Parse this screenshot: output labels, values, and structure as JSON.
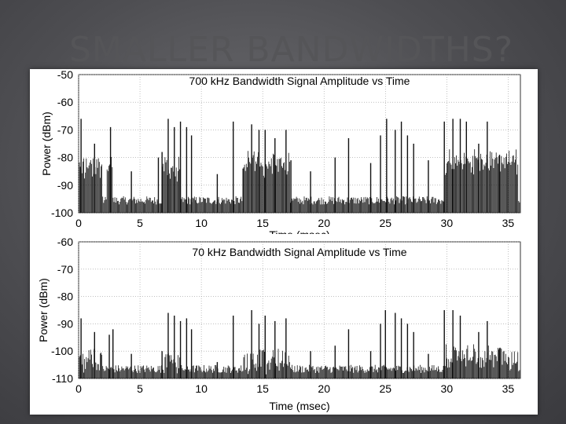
{
  "slide": {
    "title": "SMALLER BANDWIDTHS?",
    "background_color": "#55555a",
    "title_color": "#555558"
  },
  "chart_data": [
    {
      "type": "line",
      "title": "700 kHz Bandwidth Signal Amplitude vs Time",
      "xlabel": "Time (msec)",
      "ylabel": "Power (dBm)",
      "xlim": [
        0,
        36
      ],
      "ylim": [
        -100,
        -50
      ],
      "x_ticks": [
        "0",
        "5",
        "10",
        "15",
        "20",
        "25",
        "30",
        "35"
      ],
      "y_ticks": [
        "-50",
        "-60",
        "-70",
        "-80",
        "-90",
        "-100"
      ],
      "grid": true,
      "noise_floor": -97,
      "bursts": [
        {
          "x": [
            0.0,
            1.9
          ],
          "level": -84
        },
        {
          "x": [
            2.3,
            2.8
          ],
          "level": -85
        },
        {
          "x": [
            6.8,
            8.3
          ],
          "level": -84
        },
        {
          "x": [
            13.4,
            17.2
          ],
          "level": -83
        },
        {
          "x": [
            29.8,
            35.8
          ],
          "level": -82
        }
      ],
      "spikes": [
        {
          "x": 0.2,
          "y": -66
        },
        {
          "x": 1.3,
          "y": -75
        },
        {
          "x": 2.6,
          "y": -69
        },
        {
          "x": 4.3,
          "y": -85
        },
        {
          "x": 6.5,
          "y": -80
        },
        {
          "x": 6.8,
          "y": -78
        },
        {
          "x": 7.3,
          "y": -66
        },
        {
          "x": 7.8,
          "y": -69
        },
        {
          "x": 8.3,
          "y": -67
        },
        {
          "x": 8.8,
          "y": -69
        },
        {
          "x": 9.2,
          "y": -72
        },
        {
          "x": 11.3,
          "y": -86
        },
        {
          "x": 12.6,
          "y": -67
        },
        {
          "x": 13.4,
          "y": -84
        },
        {
          "x": 14.1,
          "y": -68
        },
        {
          "x": 14.7,
          "y": -70
        },
        {
          "x": 15.2,
          "y": -70
        },
        {
          "x": 16.0,
          "y": -73
        },
        {
          "x": 16.9,
          "y": -70
        },
        {
          "x": 17.3,
          "y": -81
        },
        {
          "x": 18.9,
          "y": -85
        },
        {
          "x": 20.9,
          "y": -80
        },
        {
          "x": 22.0,
          "y": -73
        },
        {
          "x": 23.8,
          "y": -82
        },
        {
          "x": 24.6,
          "y": -72
        },
        {
          "x": 25.1,
          "y": -66
        },
        {
          "x": 25.8,
          "y": -70
        },
        {
          "x": 26.3,
          "y": -67
        },
        {
          "x": 26.8,
          "y": -72
        },
        {
          "x": 27.3,
          "y": -75
        },
        {
          "x": 28.5,
          "y": -81
        },
        {
          "x": 29.8,
          "y": -67
        },
        {
          "x": 30.5,
          "y": -66
        },
        {
          "x": 31.1,
          "y": -66
        },
        {
          "x": 31.6,
          "y": -67
        },
        {
          "x": 32.6,
          "y": -75
        },
        {
          "x": 33.3,
          "y": -67
        },
        {
          "x": 34.3,
          "y": -79
        }
      ]
    },
    {
      "type": "line",
      "title": "70 kHz Bandwidth Signal Amplitude vs Time",
      "xlabel": "Time (msec)",
      "ylabel": "Power (dBm)",
      "xlim": [
        0,
        36
      ],
      "ylim": [
        -110,
        -60
      ],
      "x_ticks": [
        "0",
        "5",
        "10",
        "15",
        "20",
        "25",
        "30",
        "35"
      ],
      "y_ticks": [
        "-60",
        "-70",
        "-80",
        "-90",
        "-100",
        "-110"
      ],
      "grid": true,
      "noise_floor": -108,
      "bursts": [
        {
          "x": [
            0.0,
            1.9
          ],
          "level": -104
        },
        {
          "x": [
            7.0,
            8.3
          ],
          "level": -104
        },
        {
          "x": [
            13.4,
            17.2
          ],
          "level": -104
        },
        {
          "x": [
            29.8,
            35.8
          ],
          "level": -103
        }
      ],
      "spikes": [
        {
          "x": 0.2,
          "y": -88
        },
        {
          "x": 1.3,
          "y": -93
        },
        {
          "x": 2.5,
          "y": -94
        },
        {
          "x": 2.8,
          "y": -92
        },
        {
          "x": 4.3,
          "y": -101
        },
        {
          "x": 6.8,
          "y": -100
        },
        {
          "x": 7.3,
          "y": -86
        },
        {
          "x": 7.8,
          "y": -87
        },
        {
          "x": 8.3,
          "y": -89
        },
        {
          "x": 8.8,
          "y": -88
        },
        {
          "x": 9.2,
          "y": -92
        },
        {
          "x": 11.3,
          "y": -104
        },
        {
          "x": 12.6,
          "y": -87
        },
        {
          "x": 14.1,
          "y": -85
        },
        {
          "x": 14.7,
          "y": -90
        },
        {
          "x": 15.2,
          "y": -87
        },
        {
          "x": 16.0,
          "y": -89
        },
        {
          "x": 16.9,
          "y": -88
        },
        {
          "x": 18.9,
          "y": -100
        },
        {
          "x": 20.9,
          "y": -98
        },
        {
          "x": 22.0,
          "y": -92
        },
        {
          "x": 23.8,
          "y": -100
        },
        {
          "x": 24.6,
          "y": -90
        },
        {
          "x": 25.0,
          "y": -85
        },
        {
          "x": 25.8,
          "y": -86
        },
        {
          "x": 26.3,
          "y": -88
        },
        {
          "x": 26.8,
          "y": -90
        },
        {
          "x": 27.3,
          "y": -93
        },
        {
          "x": 28.5,
          "y": -101
        },
        {
          "x": 29.8,
          "y": -85
        },
        {
          "x": 30.5,
          "y": -85
        },
        {
          "x": 31.1,
          "y": -87
        },
        {
          "x": 32.6,
          "y": -93
        },
        {
          "x": 33.3,
          "y": -89
        },
        {
          "x": 34.3,
          "y": -99
        }
      ]
    }
  ]
}
